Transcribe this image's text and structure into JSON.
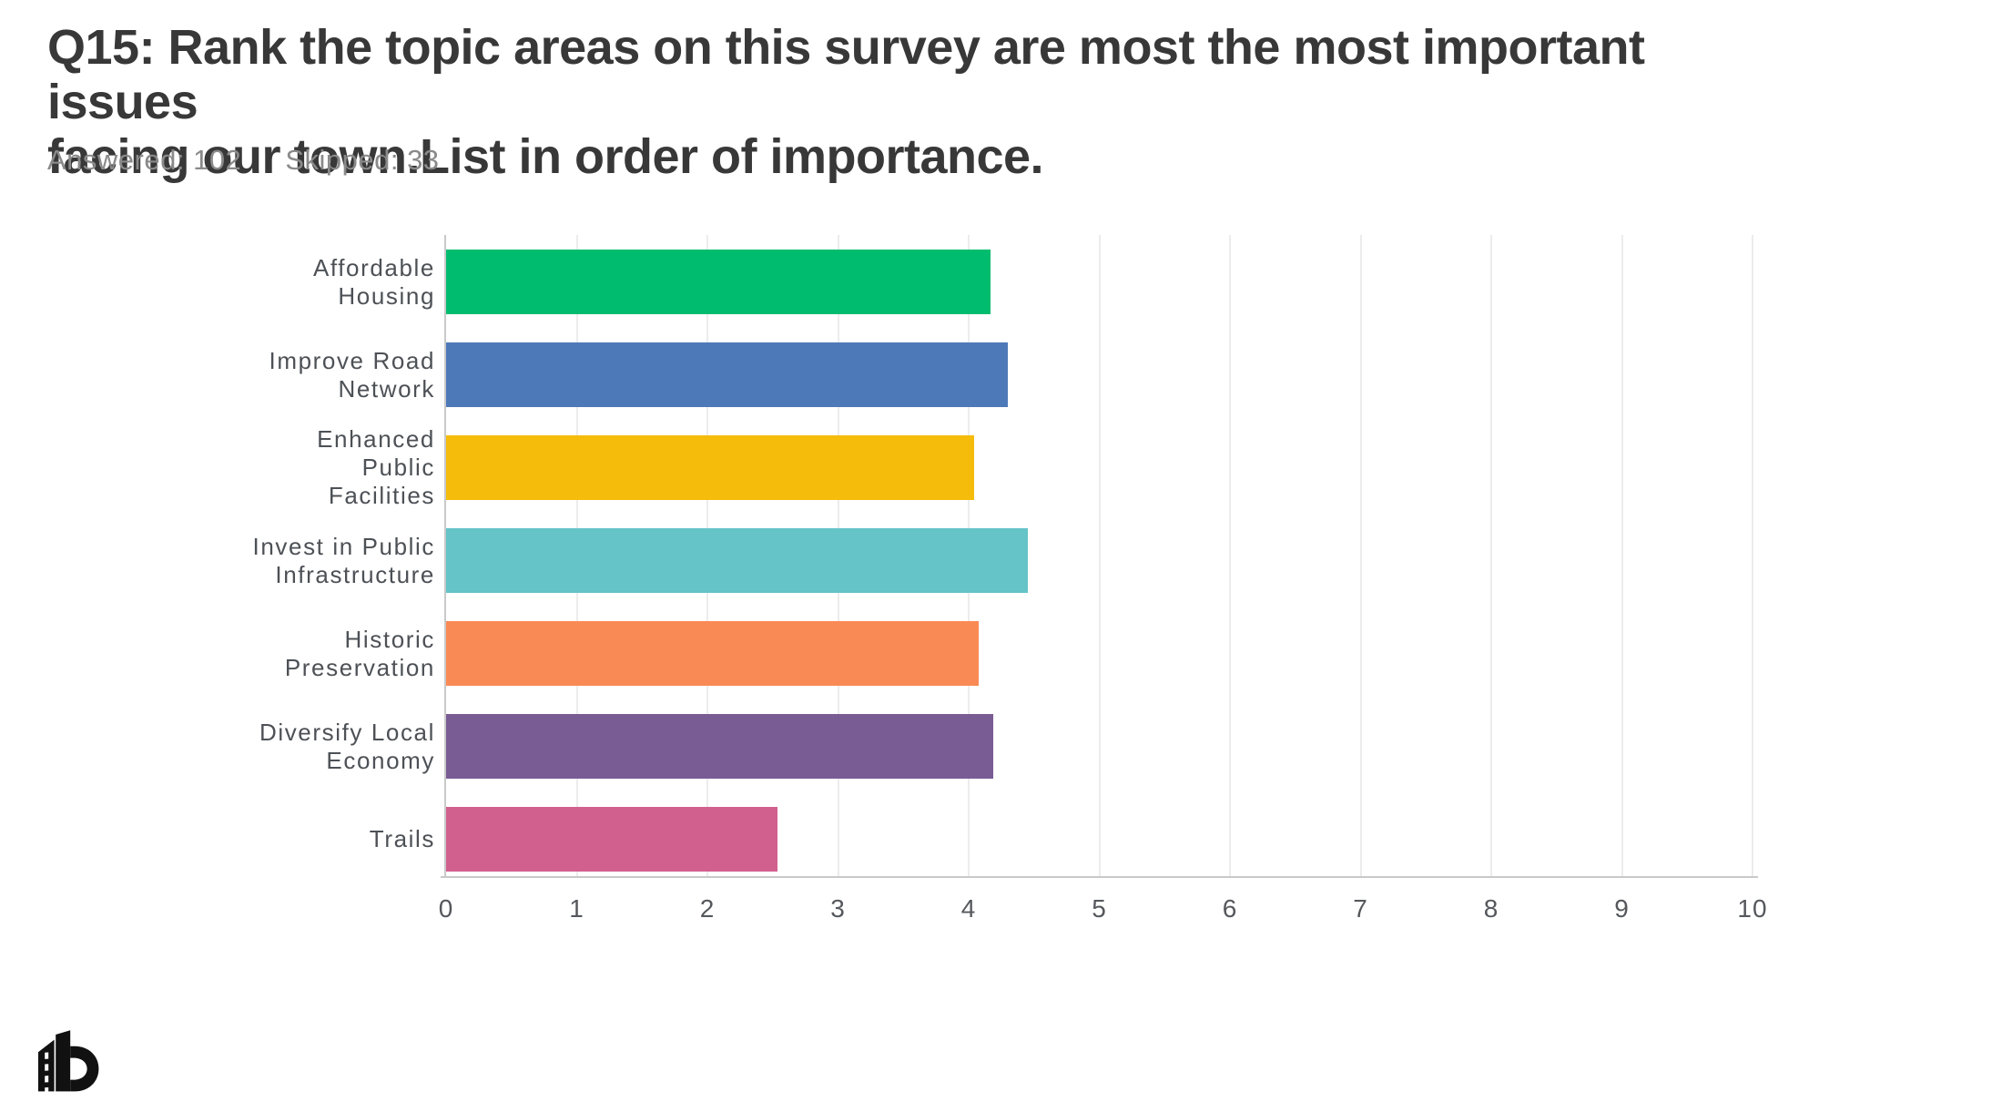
{
  "header": {
    "title_line1": "Q15: Rank the topic areas on this survey are most the most important issues",
    "title_line2": "facing our town.List in order of importance.",
    "answered": "Answered: 102",
    "skipped": "Skipped: 33"
  },
  "chart_data": {
    "type": "bar",
    "orientation": "horizontal",
    "title": "Q15: Rank the topic areas on this survey are most the most important issues facing our town.List in order of importance.",
    "categories": [
      "Affordable Housing",
      "Improve Road Network",
      "Enhanced Public Facilities",
      "Invest in Public Infrastructure",
      "Historic Preservation",
      "Diversify Local Economy",
      "Trails"
    ],
    "values": [
      4.17,
      4.3,
      4.04,
      4.45,
      4.08,
      4.19,
      2.54
    ],
    "bar_colors": [
      "#00BC6F",
      "#4E79B8",
      "#F5BC0C",
      "#64C4C8",
      "#FA8A55",
      "#7A5C94",
      "#D2608F"
    ],
    "xlabel": "",
    "ylabel": "",
    "xlim": [
      0,
      10
    ],
    "x_ticks": [
      0,
      1,
      2,
      3,
      4,
      5,
      6,
      7,
      8,
      9,
      10
    ],
    "grid": "vertical gridlines at each integer",
    "legend": "none",
    "axis_line_color": "#c9c9c9",
    "gridline_color": "#ececec",
    "category_label_color": "#4d5156",
    "tick_label_color": "#55585c"
  },
  "footer": {
    "logo_name": "b-road-logo"
  }
}
